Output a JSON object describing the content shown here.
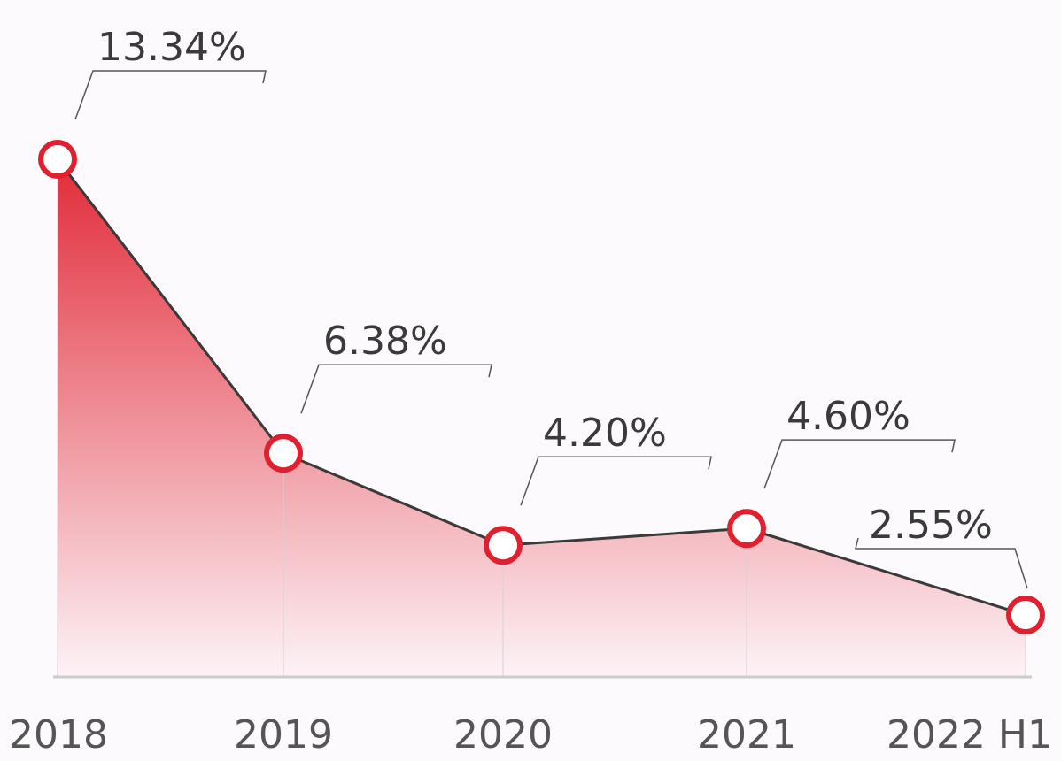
{
  "chart_data": {
    "type": "line",
    "categories": [
      "2018",
      "2019",
      "2020",
      "2021",
      "2022 H1"
    ],
    "values": [
      13.34,
      6.38,
      4.2,
      4.6,
      2.55
    ],
    "value_labels": [
      "13.34%",
      "6.38%",
      "4.20%",
      "4.60%",
      "2.55%"
    ],
    "color": "#3a3a3a",
    "marker_color": "#e0202e",
    "area_color": "#e0202e"
  }
}
